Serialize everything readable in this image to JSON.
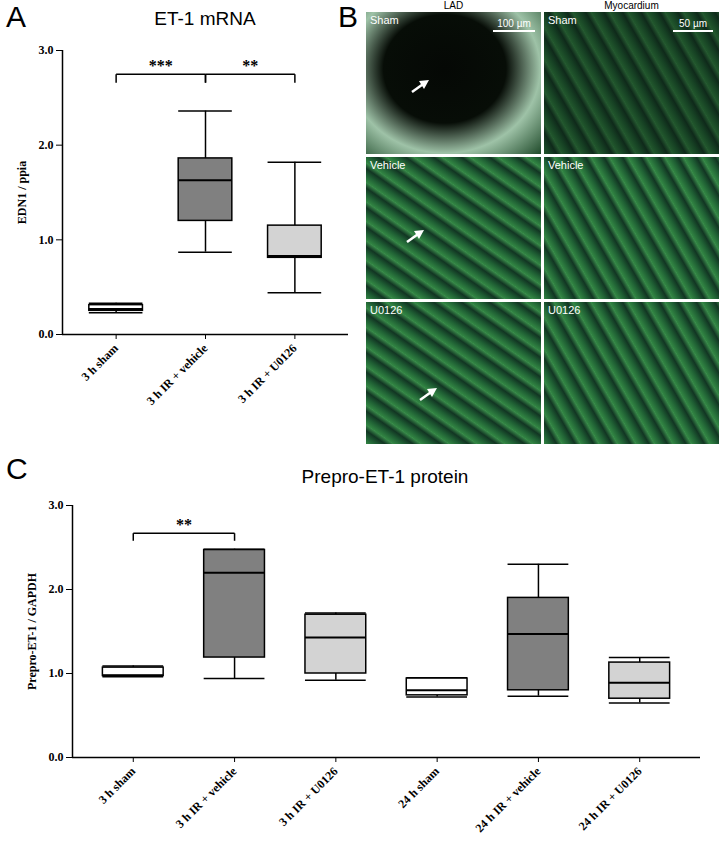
{
  "chart_data": [
    {
      "type": "box",
      "panel": "A",
      "title": "ET-1 mRNA",
      "y_label": "EDN1 / ppia",
      "categories": [
        "3 h sham",
        "3 h IR + vehicle",
        "3 h IR + U0126"
      ],
      "boxes": [
        {
          "min": 0.23,
          "q1": 0.25,
          "median": 0.27,
          "q3": 0.31,
          "max": 0.33
        },
        {
          "min": 0.87,
          "q1": 1.2,
          "median": 1.63,
          "q3": 1.86,
          "max": 2.36
        },
        {
          "min": 0.44,
          "q1": 0.81,
          "median": 0.83,
          "q3": 1.15,
          "max": 1.82
        }
      ],
      "colors": [
        "#ffffff",
        "#808080",
        "#d3d3d3"
      ],
      "ylim": [
        0,
        3
      ],
      "yticks": [
        0,
        1,
        2,
        3
      ],
      "annotations": [
        {
          "from": 0,
          "to": 1,
          "y": 2.75,
          "text": "***"
        },
        {
          "from": 1,
          "to": 2,
          "y": 2.75,
          "text": "**"
        }
      ]
    },
    {
      "type": "box",
      "panel": "C",
      "title": "Prepro-ET-1 protein",
      "y_label": "Prepro-ET-1 / GAPDH",
      "categories": [
        "3 h sham",
        "3 h IR + vehicle",
        "3 h IR + U0126",
        "24 h sham",
        "24 h IR + vehicle",
        "24 h IR + U0126"
      ],
      "boxes": [
        {
          "min": 0.96,
          "q1": 0.97,
          "median": 0.98,
          "q3": 1.07,
          "max": 1.09
        },
        {
          "min": 0.94,
          "q1": 1.19,
          "median": 2.2,
          "q3": 2.47,
          "max": 2.48
        },
        {
          "min": 0.92,
          "q1": 1.0,
          "median": 1.43,
          "q3": 1.7,
          "max": 1.72
        },
        {
          "min": 0.72,
          "q1": 0.74,
          "median": 0.8,
          "q3": 0.94,
          "max": 0.95
        },
        {
          "min": 0.73,
          "q1": 0.8,
          "median": 1.47,
          "q3": 1.9,
          "max": 2.3
        },
        {
          "min": 0.65,
          "q1": 0.7,
          "median": 0.89,
          "q3": 1.13,
          "max": 1.19
        }
      ],
      "colors": [
        "#ffffff",
        "#808080",
        "#d3d3d3",
        "#ffffff",
        "#808080",
        "#d3d3d3"
      ],
      "ylim": [
        0,
        3
      ],
      "yticks": [
        0,
        1,
        2,
        3
      ],
      "annotations": [
        {
          "from": 0,
          "to": 1,
          "y": 2.67,
          "text": "**"
        }
      ]
    }
  ],
  "image_panel": {
    "panel": "B",
    "columns": [
      "LAD",
      "Myocardium"
    ],
    "rows": [
      "Sham",
      "Vehicle",
      "U0126"
    ],
    "scale_bars": [
      "100 µm",
      "50 µm"
    ]
  }
}
